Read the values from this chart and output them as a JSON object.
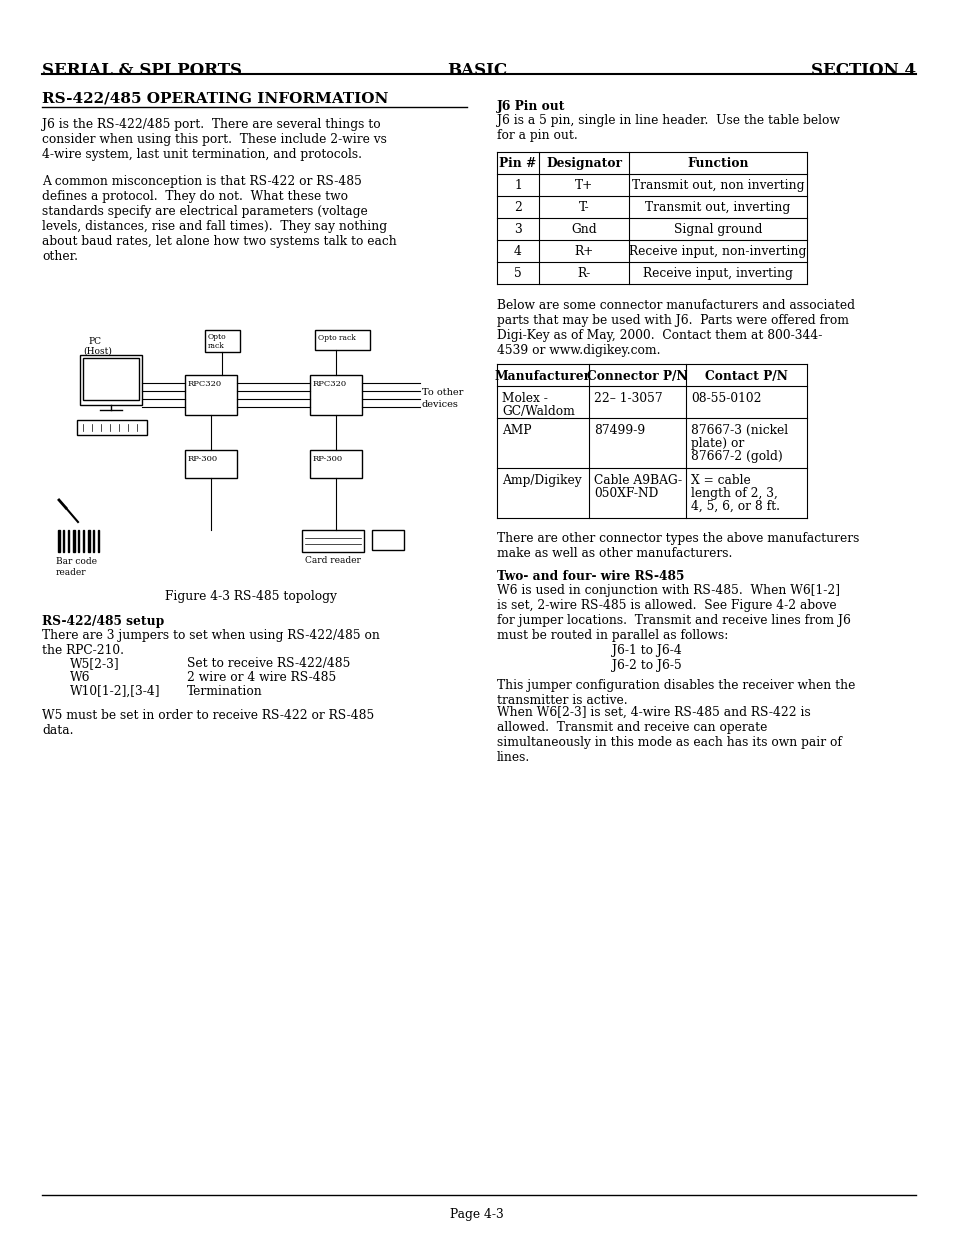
{
  "title_left": "SERIAL & SPI PORTS",
  "title_center": "BASIC",
  "title_right": "SECTION 4",
  "bg_color": "#ffffff",
  "section_heading": "RS-422/485 OPERATING INFORMATION",
  "para1": "J6 is the RS-422/485 port.  There are several things to\nconsider when using this port.  These include 2-wire vs\n4-wire system, last unit termination, and protocols.",
  "para2": "A common misconception is that RS-422 or RS-485\ndefines a protocol.  They do not.  What these two\nstandards specify are electrical parameters (voltage\nlevels, distances, rise and fall times).  They say nothing\nabout baud rates, let alone how two systems talk to each\nother.",
  "figure_caption": "Figure 4-3 RS-485 topology",
  "setup_heading": "RS-422/485 setup",
  "setup_para1": "There are 3 jumpers to set when using RS-422/485 on\nthe RPC-210.",
  "setup_jumpers": [
    [
      "W5[2-3]",
      "Set to receive RS-422/485"
    ],
    [
      "W6",
      "2 wire or 4 wire RS-485"
    ],
    [
      "W10[1-2],[3-4]",
      "Termination"
    ]
  ],
  "setup_para2": "W5 must be set in order to receive RS-422 or RS-485\ndata.",
  "j6_pinout_heading": "J6 Pin out",
  "j6_pinout_desc": "J6 is a 5 pin, single in line header.  Use the table below\nfor a pin out.",
  "pin_table_headers": [
    "Pin #",
    "Designator",
    "Function"
  ],
  "pin_table_rows": [
    [
      "1",
      "T+",
      "Transmit out, non inverting"
    ],
    [
      "2",
      "T-",
      "Transmit out, inverting"
    ],
    [
      "3",
      "Gnd",
      "Signal ground"
    ],
    [
      "4",
      "R+",
      "Receive input, non-inverting"
    ],
    [
      "5",
      "R-",
      "Receive input, inverting"
    ]
  ],
  "connector_desc": "Below are some connector manufacturers and associated\nparts that may be used with J6.  Parts were offered from\nDigi-Key as of May, 2000.  Contact them at 800-344-\n4539 or www.digikey.com.",
  "connector_table_headers": [
    "Manufacturer",
    "Connector P/N",
    "Contact P/N"
  ],
  "connector_table_rows": [
    [
      "Molex -\nGC/Waldom",
      "22– 1-3057",
      "08-55-0102"
    ],
    [
      "AMP",
      "87499-9",
      "87667-3 (nickel\nplate) or\n87667-2 (gold)"
    ],
    [
      "Amp/Digikey",
      "Cable A9BAG-\n050XF-ND",
      "X = cable\nlength of 2, 3,\n4, 5, 6, or 8 ft."
    ]
  ],
  "other_connectors": "There are other connector types the above manufacturers\nmake as well as other manufacturers.",
  "two_four_wire_heading": "Two- and four- wire RS-485",
  "two_four_wire_para1": "W6 is used in conjunction with RS-485.  When W6[1-2]\nis set, 2-wire RS-485 is allowed.  See Figure 4-2 above\nfor jumper locations.  Transmit and receive lines from J6\nmust be routed in parallel as follows:",
  "j6_route1": "J6-1 to J6-4",
  "j6_route2": "J6-2 to J6-5",
  "two_four_wire_para2": "This jumper configuration disables the receiver when the\ntransmitter is active.",
  "two_four_wire_para3": "When W6[2-3] is set, 4-wire RS-485 and RS-422 is\nallowed.  Transmit and receive can operate\nsimultaneously in this mode as each has its own pair of\nlines.",
  "page_footer": "Page 4-3"
}
